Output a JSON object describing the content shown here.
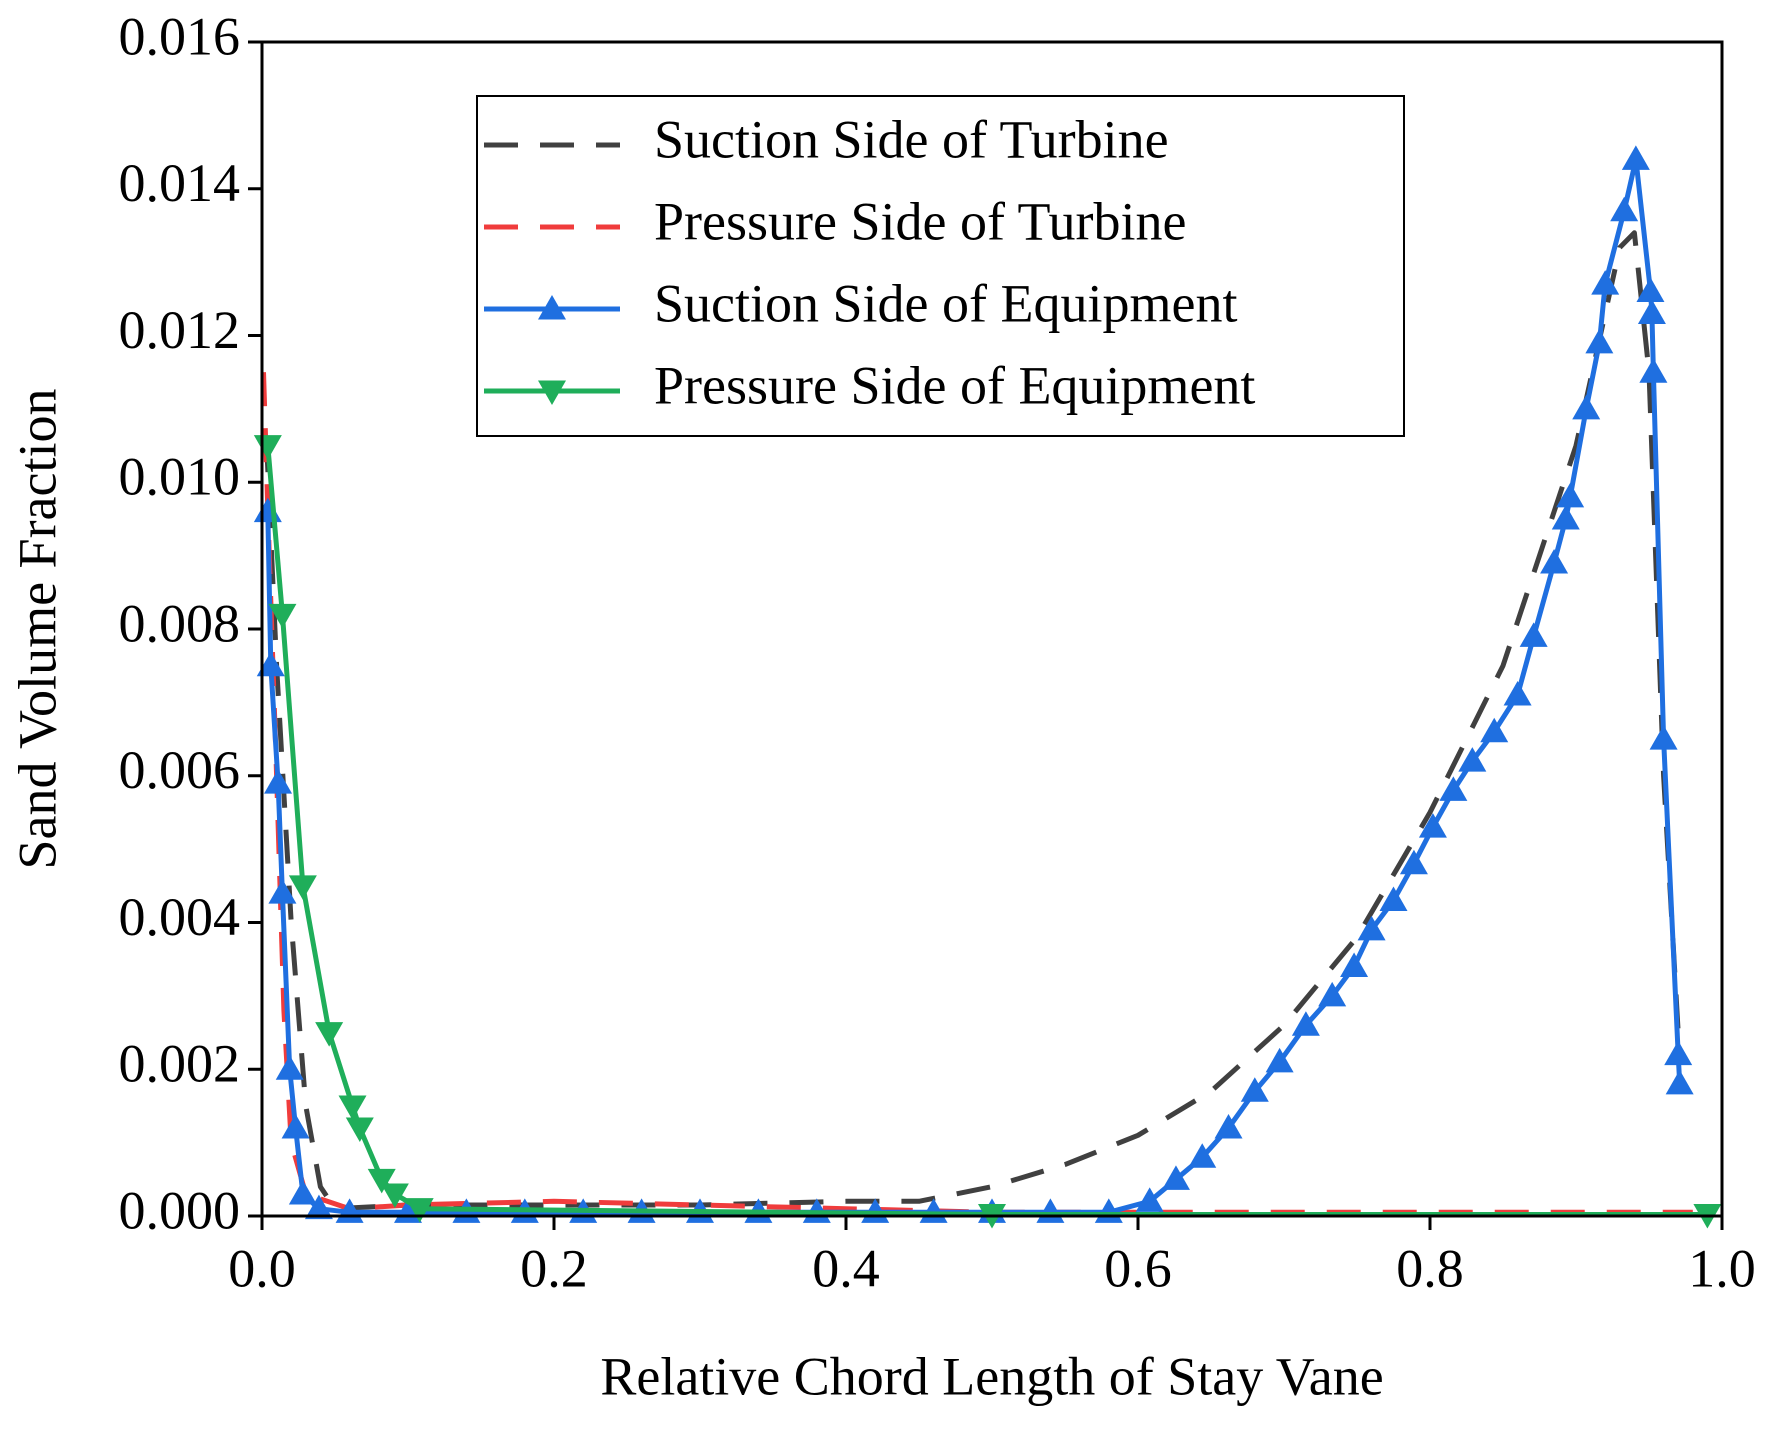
{
  "chart_data": {
    "type": "line",
    "xlabel": "Relative Chord Length of Stay Vane",
    "ylabel": "Sand Volume Fraction",
    "xlim": [
      0,
      1.0
    ],
    "ylim": [
      0,
      0.016
    ],
    "xticks": [
      {
        "value": 0,
        "label": "0.0"
      },
      0.2,
      0.4,
      0.6,
      0.8,
      {
        "value": 1.0,
        "label": "1.0"
      }
    ],
    "yticks": [
      {
        "value": 0,
        "label": "0.000"
      },
      {
        "value": 0.002,
        "label": "0.002"
      },
      {
        "value": 0.004,
        "label": "0.004"
      },
      {
        "value": 0.006,
        "label": "0.006"
      },
      {
        "value": 0.008,
        "label": "0.008"
      },
      {
        "value": 0.01,
        "label": "0.010"
      },
      {
        "value": 0.012,
        "label": "0.012"
      },
      {
        "value": 0.014,
        "label": "0.014"
      },
      {
        "value": 0.016,
        "label": "0.016"
      }
    ],
    "legend": "top-center",
    "series": [
      {
        "name": "Suction Side of Turbine",
        "color": "#404040",
        "dash": true,
        "marker": "none",
        "x": [
          0.003,
          0.01,
          0.02,
          0.03,
          0.04,
          0.05,
          0.1,
          0.2,
          0.3,
          0.4,
          0.45,
          0.5,
          0.55,
          0.6,
          0.65,
          0.7,
          0.75,
          0.8,
          0.85,
          0.9,
          0.93,
          0.94,
          0.95,
          0.96,
          0.97
        ],
        "values": [
          0.0106,
          0.0075,
          0.004,
          0.0015,
          0.0004,
          0.0001,
          0.00015,
          0.00015,
          0.00015,
          0.0002,
          0.0002,
          0.0004,
          0.0007,
          0.0011,
          0.0017,
          0.0026,
          0.0038,
          0.0055,
          0.0075,
          0.0105,
          0.0132,
          0.0134,
          0.0115,
          0.006,
          0.0025
        ]
      },
      {
        "name": "Pressure Side of Turbine",
        "color": "#f03c3c",
        "dash": true,
        "marker": "none",
        "x": [
          0.001,
          0.005,
          0.01,
          0.015,
          0.02,
          0.03,
          0.06,
          0.1,
          0.2,
          0.3,
          0.4,
          0.5,
          0.98
        ],
        "values": [
          0.0115,
          0.009,
          0.006,
          0.0028,
          0.001,
          0.0003,
          0.0001,
          0.00015,
          0.0002,
          0.00015,
          0.0001,
          5e-05,
          5e-05
        ]
      },
      {
        "name": "Suction Side of Equipment",
        "color": "#1f6fe0",
        "dash": false,
        "marker": "up",
        "x": [
          0.004,
          0.006,
          0.011,
          0.014,
          0.019,
          0.023,
          0.028,
          0.039,
          0.06,
          0.1,
          0.14,
          0.18,
          0.22,
          0.26,
          0.3,
          0.34,
          0.38,
          0.42,
          0.46,
          0.5,
          0.54,
          0.58,
          0.608,
          0.626,
          0.644,
          0.662,
          0.68,
          0.697,
          0.715,
          0.733,
          0.748,
          0.76,
          0.775,
          0.789,
          0.802,
          0.816,
          0.829,
          0.844,
          0.86,
          0.871,
          0.885,
          0.893,
          0.896,
          0.907,
          0.916,
          0.92,
          0.933,
          0.941,
          0.951,
          0.952,
          0.953,
          0.96,
          0.97,
          0.971
        ],
        "values": [
          0.0096,
          0.0075,
          0.0059,
          0.0044,
          0.002,
          0.0012,
          0.0003,
          0.0001,
          5e-05,
          5e-05,
          5e-05,
          5e-05,
          5e-05,
          5e-05,
          5e-05,
          5e-05,
          5e-05,
          5e-05,
          5e-05,
          5e-05,
          5e-05,
          5e-05,
          0.0002,
          0.0005,
          0.0008,
          0.0012,
          0.0017,
          0.0021,
          0.0026,
          0.003,
          0.0034,
          0.0039,
          0.0043,
          0.0048,
          0.0053,
          0.0058,
          0.0062,
          0.0066,
          0.0071,
          0.0079,
          0.0089,
          0.0095,
          0.0098,
          0.011,
          0.0119,
          0.0127,
          0.0137,
          0.0144,
          0.0126,
          0.0123,
          0.0115,
          0.0065,
          0.0022,
          0.0018
        ]
      },
      {
        "name": "Pressure Side of Equipment",
        "color": "#1fae5a",
        "dash": false,
        "marker": "down",
        "x": [
          0.004,
          0.014,
          0.028,
          0.046,
          0.062,
          0.067,
          0.082,
          0.091,
          0.108,
          0.5,
          0.99
        ],
        "values": [
          0.0105,
          0.0082,
          0.0045,
          0.0025,
          0.0015,
          0.0012,
          0.0005,
          0.0003,
          0.0001,
          2e-05,
          2e-05
        ]
      }
    ]
  }
}
